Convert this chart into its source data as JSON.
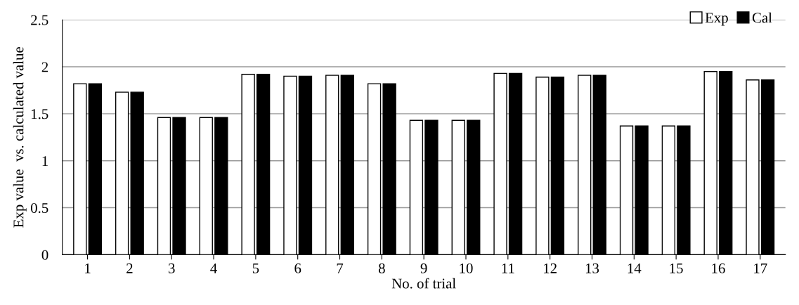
{
  "chart_data": {
    "type": "bar",
    "xlabel": "No. of trial",
    "ylabel": "Exp value  vs. calculated value",
    "categories": [
      "1",
      "2",
      "3",
      "4",
      "5",
      "6",
      "7",
      "8",
      "9",
      "10",
      "11",
      "12",
      "13",
      "14",
      "15",
      "16",
      "17"
    ],
    "series": [
      {
        "name": "Exp",
        "color": "#ffffff",
        "values": [
          1.82,
          1.73,
          1.46,
          1.46,
          1.92,
          1.9,
          1.91,
          1.82,
          1.43,
          1.43,
          1.93,
          1.89,
          1.91,
          1.37,
          1.37,
          1.95,
          1.86
        ]
      },
      {
        "name": "Cal",
        "color": "#000000",
        "values": [
          1.82,
          1.73,
          1.46,
          1.46,
          1.92,
          1.9,
          1.91,
          1.82,
          1.43,
          1.43,
          1.93,
          1.89,
          1.91,
          1.37,
          1.37,
          1.95,
          1.86
        ]
      }
    ],
    "ylim": [
      0,
      2.5
    ],
    "yticks": [
      0,
      0.5,
      1,
      1.5,
      2,
      2.5
    ],
    "grid": "y",
    "legend": "top right"
  }
}
